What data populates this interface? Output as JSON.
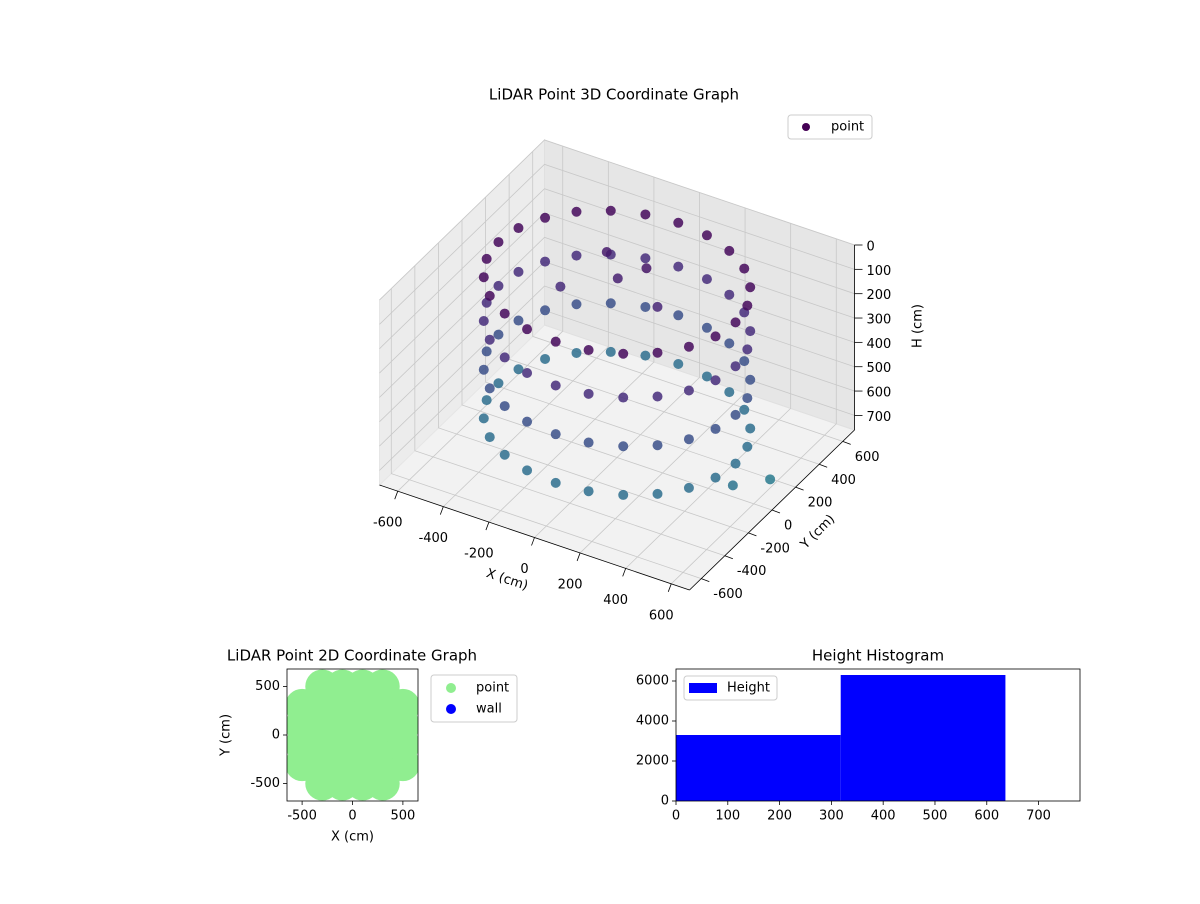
{
  "chart_data": [
    {
      "type": "scatter3d",
      "title": "LiDAR Point 3D Coordinate Graph",
      "xlabel": "X (cm)",
      "ylabel": "Y (cm)",
      "zlabel": "H (cm)",
      "xlim": [
        -680,
        680
      ],
      "ylim": [
        -700,
        700
      ],
      "zlim": [
        0,
        760
      ],
      "invert_z": true,
      "xticks": [
        -600,
        -400,
        -200,
        0,
        200,
        400,
        600
      ],
      "yticks": [
        -600,
        -400,
        -200,
        0,
        200,
        400,
        600
      ],
      "zticks": [
        0,
        100,
        200,
        300,
        400,
        500,
        600,
        700
      ],
      "grid": true,
      "legend": "upper right",
      "colormap": [
        "#440154",
        "#482878",
        "#3e4a89",
        "#31688e",
        "#26828e"
      ],
      "series": [
        {
          "name": "point",
          "x": [
            520,
            502,
            450,
            368,
            260,
            135,
            0,
            -135,
            -260,
            -368,
            -450,
            -502,
            -520,
            -502,
            -450,
            -368,
            -260,
            -135,
            0,
            135,
            260,
            368,
            450,
            502,
            520,
            502,
            450,
            368,
            260,
            135,
            0,
            -135,
            -260,
            -368,
            -450,
            -502,
            -520,
            -502,
            -450,
            -368,
            -260,
            -135,
            0,
            135,
            260,
            368,
            450,
            502,
            520,
            502,
            450,
            368,
            260,
            135,
            0,
            -135,
            -260,
            -368,
            -450,
            -502,
            -520,
            -502,
            -450,
            -368,
            -260,
            -135,
            0,
            135,
            260,
            368,
            450,
            502,
            520,
            502,
            450,
            368,
            260,
            135,
            0,
            -135,
            -260,
            -368,
            -450,
            -502,
            -520,
            -502,
            -450,
            -368,
            -260,
            -135,
            0,
            135,
            260,
            368,
            450,
            502,
            -200,
            -100,
            0,
            100,
            -300,
            560,
            620
          ],
          "y": [
            0,
            135,
            260,
            368,
            450,
            502,
            520,
            502,
            450,
            368,
            260,
            135,
            0,
            -135,
            -260,
            -368,
            -450,
            -502,
            -520,
            -502,
            -450,
            -368,
            -260,
            -135,
            0,
            135,
            260,
            368,
            450,
            502,
            520,
            502,
            450,
            368,
            260,
            135,
            0,
            -135,
            -260,
            -368,
            -450,
            -502,
            -520,
            -502,
            -450,
            -368,
            -260,
            -135,
            0,
            135,
            260,
            368,
            450,
            502,
            520,
            502,
            450,
            368,
            260,
            135,
            0,
            -135,
            -260,
            -368,
            -450,
            -502,
            -520,
            -502,
            -450,
            -368,
            -260,
            -135,
            0,
            135,
            260,
            368,
            450,
            502,
            520,
            502,
            450,
            368,
            260,
            135,
            0,
            -135,
            -260,
            -368,
            -450,
            -502,
            -520,
            -502,
            -450,
            -368,
            -260,
            -135,
            300,
            200,
            250,
            150,
            100,
            -100,
            100
          ],
          "h": [
            40,
            40,
            40,
            40,
            40,
            40,
            40,
            40,
            40,
            40,
            40,
            40,
            40,
            40,
            40,
            40,
            40,
            40,
            40,
            40,
            40,
            40,
            40,
            40,
            220,
            220,
            220,
            220,
            220,
            220,
            220,
            220,
            220,
            220,
            220,
            220,
            220,
            220,
            220,
            220,
            220,
            220,
            220,
            220,
            220,
            220,
            220,
            220,
            420,
            420,
            420,
            420,
            420,
            420,
            420,
            420,
            420,
            420,
            420,
            420,
            420,
            420,
            420,
            420,
            420,
            420,
            420,
            420,
            420,
            420,
            420,
            420,
            620,
            620,
            620,
            620,
            620,
            620,
            620,
            620,
            620,
            620,
            620,
            620,
            620,
            620,
            620,
            620,
            620,
            620,
            620,
            620,
            620,
            620,
            620,
            620,
            120,
            150,
            100,
            180,
            200,
            650,
            700
          ]
        }
      ]
    },
    {
      "type": "scatter",
      "title": "LiDAR Point 2D Coordinate Graph",
      "xlabel": "X (cm)",
      "ylabel": "Y (cm)",
      "xlim": [
        -650,
        650
      ],
      "ylim": [
        -680,
        680
      ],
      "xticks": [
        -500,
        0,
        500
      ],
      "yticks": [
        -500,
        0,
        500
      ],
      "legend": "outside right",
      "series": [
        {
          "name": "point",
          "color": "#90ee90",
          "x": [
            -300,
            -100,
            100,
            300,
            -500,
            -300,
            -100,
            100,
            300,
            500,
            -500,
            -300,
            -100,
            100,
            300,
            500,
            -500,
            -300,
            -100,
            100,
            300,
            500,
            -500,
            -300,
            -100,
            100,
            300,
            500,
            -300,
            -100,
            100,
            300,
            600
          ],
          "y": [
            -500,
            -500,
            -500,
            -500,
            -300,
            -300,
            -300,
            -300,
            -300,
            -300,
            -100,
            -100,
            -100,
            -100,
            -100,
            -100,
            100,
            100,
            100,
            100,
            100,
            100,
            300,
            300,
            300,
            300,
            300,
            300,
            500,
            500,
            500,
            500,
            50
          ]
        },
        {
          "name": "wall",
          "color": "#0000ff",
          "x": [],
          "y": []
        }
      ]
    },
    {
      "type": "histogram",
      "title": "Height Histogram",
      "bins": [
        0,
        318,
        636
      ],
      "xlim": [
        0,
        780
      ],
      "ylim": [
        0,
        6600
      ],
      "xticks": [
        0,
        100,
        200,
        300,
        400,
        500,
        600,
        700
      ],
      "yticks": [
        0,
        2000,
        4000,
        6000
      ],
      "legend": "upper left",
      "series": [
        {
          "name": "Height",
          "color": "#0000ff",
          "values": [
            3300,
            6300
          ]
        }
      ]
    }
  ]
}
